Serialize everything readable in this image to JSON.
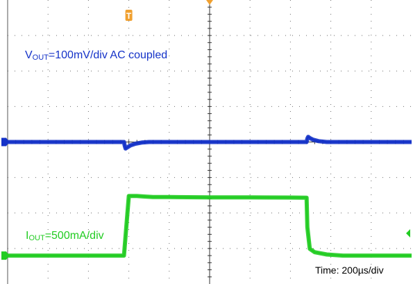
{
  "chart_data": {
    "type": "line",
    "title": "",
    "x_unit": "µs",
    "x_range": [
      0,
      1000
    ],
    "grid": true,
    "annotations": {
      "vout": {
        "main": "V",
        "sub": "OUT",
        "rest": "=100mV/div AC coupled"
      },
      "iout": {
        "main": "I",
        "sub": "OUT",
        "rest": "=500mA/div"
      },
      "time": "Time: 200µs/div"
    },
    "series": [
      {
        "key": "vout",
        "name": "VOUT",
        "color": "#1432c8",
        "unit": "mV",
        "y_range": [
          -500,
          500
        ],
        "points": [
          [
            0,
            0
          ],
          [
            288,
            0
          ],
          [
            290,
            -14
          ],
          [
            292,
            -23
          ],
          [
            296,
            -19
          ],
          [
            304,
            -12
          ],
          [
            316,
            -6
          ],
          [
            332,
            -2
          ],
          [
            350,
            0
          ],
          [
            740,
            0
          ],
          [
            742,
            12
          ],
          [
            744,
            18
          ],
          [
            748,
            14
          ],
          [
            756,
            8
          ],
          [
            770,
            3
          ],
          [
            790,
            0
          ],
          [
            1000,
            0
          ]
        ]
      },
      {
        "key": "iout",
        "name": "IOUT",
        "color": "#22cc22",
        "unit": "mA",
        "y_range": [
          -1750,
          750
        ],
        "points": [
          [
            0,
            -1500
          ],
          [
            288,
            -1500
          ],
          [
            300,
            -975
          ],
          [
            320,
            -975
          ],
          [
            338,
            -980
          ],
          [
            360,
            -985
          ],
          [
            400,
            -985
          ],
          [
            500,
            -987
          ],
          [
            600,
            -988
          ],
          [
            700,
            -989
          ],
          [
            740,
            -990
          ],
          [
            742,
            -1250
          ],
          [
            748,
            -1440
          ],
          [
            760,
            -1470
          ],
          [
            790,
            -1490
          ],
          [
            830,
            -1500
          ],
          [
            1000,
            -1500
          ]
        ]
      }
    ],
    "markers": {
      "trigger_letter": "T"
    }
  }
}
